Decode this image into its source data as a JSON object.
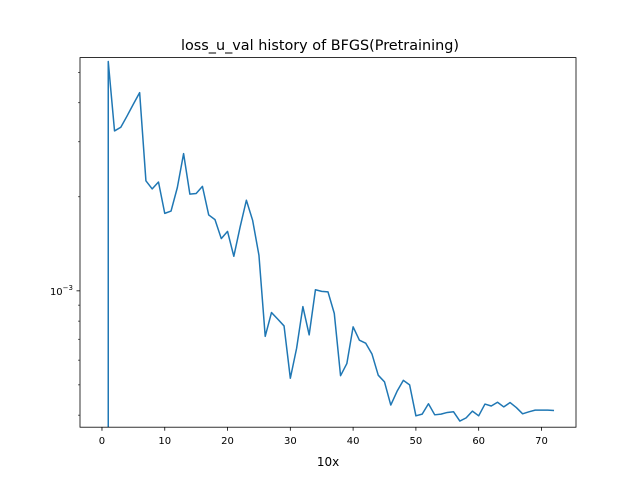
{
  "chart_data": {
    "type": "line",
    "title": "loss_u_val history of BFGS(Pretraining)",
    "xlabel": "10x",
    "ylabel": "",
    "y_scale": "log",
    "xlim": [
      -3.5,
      75.5
    ],
    "ylim": [
      0.000366,
      0.00558
    ],
    "x_ticks": [
      0,
      10,
      20,
      30,
      40,
      50,
      60,
      70
    ],
    "x_tick_labels": [
      "0",
      "10",
      "20",
      "30",
      "40",
      "50",
      "60",
      "70"
    ],
    "y_ticks": [
      0.001
    ],
    "y_tick_labels": [
      "10",
      "−3"
    ],
    "grid": false,
    "legend": "none",
    "color": "#1f77b4",
    "drop": {
      "x": 1,
      "y_from": 0.00427,
      "y_to": 0.000366
    },
    "series": [
      {
        "x": [
          1,
          2,
          3,
          4,
          5,
          6,
          7,
          8,
          9,
          10,
          11,
          12,
          13,
          14,
          15,
          16,
          17,
          18,
          19,
          20,
          21,
          22,
          23,
          24,
          25,
          26,
          27,
          28,
          29,
          30,
          31,
          32,
          33,
          34,
          35,
          36,
          37,
          38,
          39,
          40,
          41,
          42,
          43,
          44,
          45,
          46,
          47,
          48,
          49,
          50,
          51,
          52,
          53,
          54,
          55,
          56,
          57,
          58,
          59,
          60,
          61,
          62,
          63,
          64,
          65,
          66,
          67,
          68,
          69,
          70,
          71,
          72
        ],
        "y": [
          0.00542,
          0.00325,
          0.00334,
          0.00363,
          0.00396,
          0.00431,
          0.00225,
          0.00212,
          0.00223,
          0.00177,
          0.0018,
          0.00214,
          0.00275,
          0.00204,
          0.00205,
          0.00216,
          0.00175,
          0.00169,
          0.00147,
          0.00155,
          0.00129,
          0.0016,
          0.00195,
          0.00168,
          0.0013,
          0.000715,
          0.000852,
          0.000812,
          0.000772,
          0.000525,
          0.000655,
          0.00089,
          0.000723,
          0.001008,
          0.000996,
          0.000992,
          0.000847,
          0.000535,
          0.000585,
          0.000767,
          0.000695,
          0.00068,
          0.000628,
          0.000537,
          0.000511,
          0.000431,
          0.000477,
          0.000517,
          0.0005,
          0.000398,
          0.000403,
          0.000435,
          0.000401,
          0.000403,
          0.000408,
          0.00041,
          0.000383,
          0.000392,
          0.000412,
          0.000398,
          0.000434,
          0.000428,
          0.00044,
          0.000425,
          0.000439,
          0.000423,
          0.000404,
          0.00041,
          0.000415,
          0.000415,
          0.000415,
          0.000414
        ]
      }
    ]
  }
}
